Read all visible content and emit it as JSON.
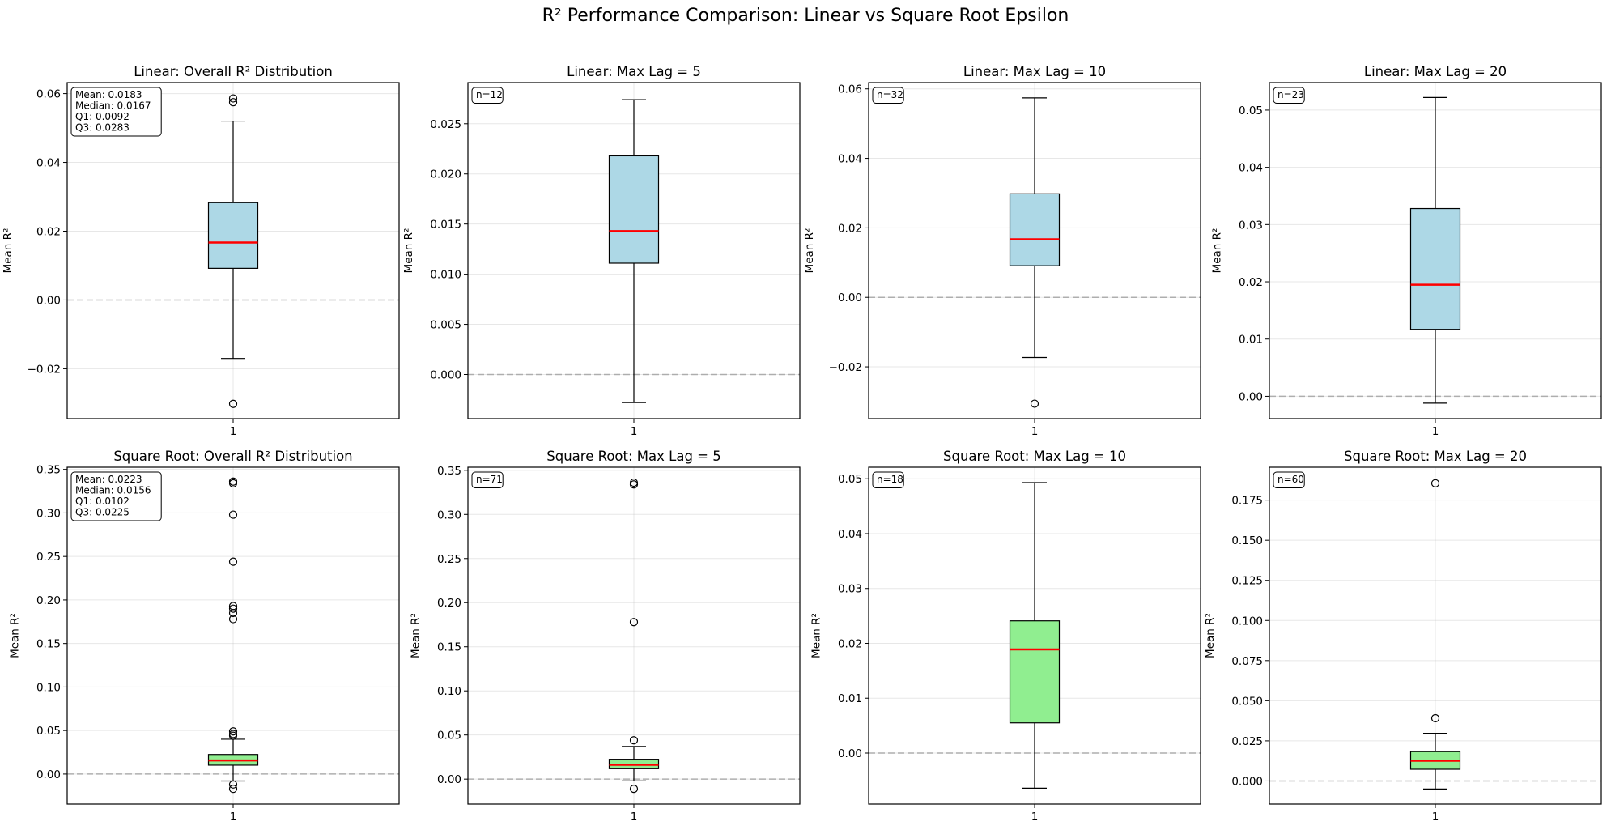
{
  "chart_data": {
    "type": "box",
    "suptitle": "R² Performance Comparison: Linear vs Square Root Epsilon",
    "panels": [
      {
        "title": "Linear: Overall R² Distribution",
        "ylabel": "Mean R²",
        "xtick": "1",
        "ylim": [
          -0.0345,
          0.0632
        ],
        "yticks": [
          -0.02,
          0.0,
          0.02,
          0.04,
          0.06
        ],
        "tick_labels": [
          "−0.02",
          "0.00",
          "0.02",
          "0.04",
          "0.06"
        ],
        "box": {
          "whisker_low": -0.017,
          "q1": 0.0092,
          "median": 0.0167,
          "q3": 0.0283,
          "whisker_high": 0.052
        },
        "outliers": [
          0.0586,
          0.0575,
          -0.0302
        ],
        "fill": "#add8e6",
        "stats": [
          "Mean: 0.0183",
          "Median: 0.0167",
          "Q1: 0.0092",
          "Q3: 0.0283"
        ]
      },
      {
        "title": "Linear: Max Lag = 5",
        "ylabel": "Mean R²",
        "xtick": "1",
        "ylim": [
          -0.0044,
          0.0291
        ],
        "yticks": [
          0.0,
          0.005,
          0.01,
          0.015,
          0.02,
          0.025
        ],
        "tick_labels": [
          "0.000",
          "0.005",
          "0.010",
          "0.015",
          "0.020",
          "0.025"
        ],
        "box": {
          "whisker_low": -0.0028,
          "q1": 0.0111,
          "median": 0.0143,
          "q3": 0.0218,
          "whisker_high": 0.0274
        },
        "outliers": [],
        "fill": "#add8e6",
        "stats": [
          "n=12"
        ]
      },
      {
        "title": "Linear: Max Lag = 10",
        "ylabel": "Mean R²",
        "xtick": "1",
        "ylim": [
          -0.0349,
          0.0618
        ],
        "yticks": [
          -0.02,
          0.0,
          0.02,
          0.04,
          0.06
        ],
        "tick_labels": [
          "−0.02",
          "0.00",
          "0.02",
          "0.04",
          "0.06"
        ],
        "box": {
          "whisker_low": -0.0173,
          "q1": 0.0091,
          "median": 0.0167,
          "q3": 0.0298,
          "whisker_high": 0.0574
        },
        "outliers": [
          -0.0306
        ],
        "fill": "#add8e6",
        "stats": [
          "n=32"
        ]
      },
      {
        "title": "Linear: Max Lag = 20",
        "ylabel": "Mean R²",
        "xtick": "1",
        "ylim": [
          -0.0039,
          0.0548
        ],
        "yticks": [
          0.0,
          0.01,
          0.02,
          0.03,
          0.04,
          0.05
        ],
        "tick_labels": [
          "0.00",
          "0.01",
          "0.02",
          "0.03",
          "0.04",
          "0.05"
        ],
        "box": {
          "whisker_low": -0.0012,
          "q1": 0.0117,
          "median": 0.0195,
          "q3": 0.0328,
          "whisker_high": 0.0522
        },
        "outliers": [],
        "fill": "#add8e6",
        "stats": [
          "n=23"
        ]
      },
      {
        "title": "Square Root: Overall R² Distribution",
        "ylabel": "Mean R²",
        "xtick": "1",
        "ylim": [
          -0.0345,
          0.3525
        ],
        "yticks": [
          0.0,
          0.05,
          0.1,
          0.15,
          0.2,
          0.25,
          0.3,
          0.35
        ],
        "tick_labels": [
          "0.00",
          "0.05",
          "0.10",
          "0.15",
          "0.20",
          "0.25",
          "0.30",
          "0.35"
        ],
        "box": {
          "whisker_low": -0.008,
          "q1": 0.0102,
          "median": 0.0156,
          "q3": 0.0225,
          "whisker_high": 0.04
        },
        "outliers": [
          0.336,
          0.334,
          0.298,
          0.244,
          0.193,
          0.19,
          0.185,
          0.178,
          0.049,
          0.046,
          0.044,
          -0.012,
          -0.017
        ],
        "fill": "#90ee90",
        "stats": [
          "Mean: 0.0223",
          "Median: 0.0156",
          "Q1: 0.0102",
          "Q3: 0.0225"
        ]
      },
      {
        "title": "Square Root: Max Lag = 5",
        "ylabel": "Mean R²",
        "xtick": "1",
        "ylim": [
          -0.0283,
          0.3535
        ],
        "yticks": [
          0.0,
          0.05,
          0.1,
          0.15,
          0.2,
          0.25,
          0.3,
          0.35
        ],
        "tick_labels": [
          "0.00",
          "0.05",
          "0.10",
          "0.15",
          "0.20",
          "0.25",
          "0.30",
          "0.35"
        ],
        "box": {
          "whisker_low": -0.002,
          "q1": 0.0118,
          "median": 0.0162,
          "q3": 0.0225,
          "whisker_high": 0.037
        },
        "outliers": [
          0.336,
          0.334,
          0.178,
          0.044,
          -0.011
        ],
        "fill": "#90ee90",
        "stats": [
          "n=71"
        ]
      },
      {
        "title": "Square Root: Max Lag = 10",
        "ylabel": "Mean R²",
        "xtick": "1",
        "ylim": [
          -0.0093,
          0.0521
        ],
        "yticks": [
          0.0,
          0.01,
          0.02,
          0.03,
          0.04,
          0.05
        ],
        "tick_labels": [
          "0.00",
          "0.01",
          "0.02",
          "0.03",
          "0.04",
          "0.05"
        ],
        "box": {
          "whisker_low": -0.0064,
          "q1": 0.0055,
          "median": 0.0189,
          "q3": 0.0241,
          "whisker_high": 0.0493
        },
        "outliers": [],
        "fill": "#90ee90",
        "stats": [
          "n=18"
        ]
      },
      {
        "title": "Square Root: Max Lag = 20",
        "ylabel": "Mean R²",
        "xtick": "1",
        "ylim": [
          -0.0144,
          0.1955
        ],
        "yticks": [
          0.0,
          0.025,
          0.05,
          0.075,
          0.1,
          0.125,
          0.15,
          0.175
        ],
        "tick_labels": [
          "0.000",
          "0.025",
          "0.050",
          "0.075",
          "0.100",
          "0.125",
          "0.150",
          "0.175"
        ],
        "box": {
          "whisker_low": -0.005,
          "q1": 0.0073,
          "median": 0.0126,
          "q3": 0.0183,
          "whisker_high": 0.0297
        },
        "outliers": [
          0.1855,
          0.0391
        ],
        "fill": "#90ee90",
        "stats": [
          "n=60"
        ]
      }
    ]
  }
}
